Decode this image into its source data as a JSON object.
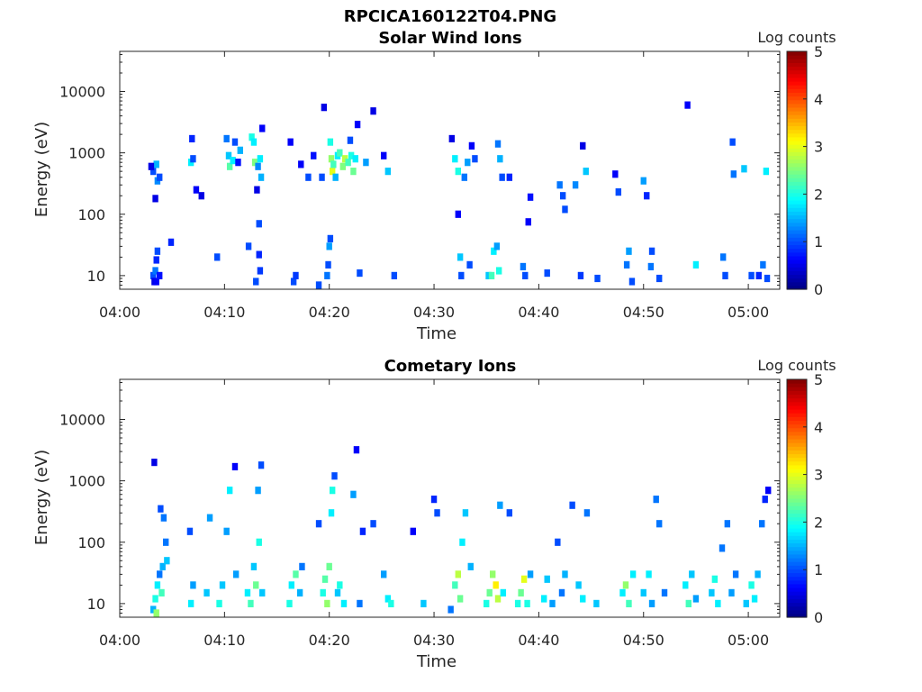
{
  "figure": {
    "title": "RPCICA160122T04.PNG",
    "colors": {
      "axes": "#262626",
      "background": "#ffffff",
      "colormap": [
        "#00007f",
        "#0000ff",
        "#007fff",
        "#00ffff",
        "#7fff7f",
        "#ffff00",
        "#ff7f00",
        "#ff0000",
        "#7f0000"
      ]
    }
  },
  "chart_data": [
    {
      "type": "heatmap",
      "title": "Solar Wind Ions",
      "xlabel": "Time",
      "ylabel": "Energy (eV)",
      "x_ticks": [
        "04:00",
        "04:10",
        "04:20",
        "04:30",
        "04:40",
        "04:50",
        "05:00"
      ],
      "y_ticks": [
        "10",
        "100",
        "1000",
        "10000"
      ],
      "y_scale": "log",
      "ylim": [
        6,
        45000
      ],
      "xlim": [
        "04:00",
        "05:03"
      ],
      "colorbar": {
        "label": "Log counts",
        "range": [
          0,
          5
        ],
        "ticks": [
          "0",
          "1",
          "2",
          "3",
          "4",
          "5"
        ]
      },
      "cells": [
        [
          3.2,
          10,
          1
        ],
        [
          3.3,
          8,
          0.5
        ],
        [
          3.4,
          12,
          1.2
        ],
        [
          3.5,
          18,
          0.8
        ],
        [
          3.5,
          8,
          0.6
        ],
        [
          3.6,
          25,
          1
        ],
        [
          3.8,
          10,
          0.7
        ],
        [
          3.2,
          500,
          1
        ],
        [
          3.5,
          650,
          1.5
        ],
        [
          3.6,
          350,
          1.3
        ],
        [
          3.8,
          400,
          1
        ],
        [
          3.0,
          600,
          0.5
        ],
        [
          3.4,
          180,
          0.5
        ],
        [
          4.9,
          35,
          0.8
        ],
        [
          6.8,
          700,
          1.8
        ],
        [
          6.9,
          1700,
          0.8
        ],
        [
          7.0,
          800,
          1
        ],
        [
          7.3,
          250,
          0.6
        ],
        [
          7.8,
          200,
          0.5
        ],
        [
          9.3,
          20,
          1
        ],
        [
          10.2,
          1700,
          1.2
        ],
        [
          10.4,
          900,
          1.6
        ],
        [
          10.5,
          600,
          2.3
        ],
        [
          10.8,
          750,
          1.8
        ],
        [
          11.0,
          1500,
          1
        ],
        [
          11.3,
          700,
          0.7
        ],
        [
          11.5,
          1100,
          1.5
        ],
        [
          12.3,
          30,
          1
        ],
        [
          12.6,
          1800,
          2
        ],
        [
          12.8,
          1500,
          1.8
        ],
        [
          12.9,
          700,
          2.5
        ],
        [
          13.1,
          250,
          0.5
        ],
        [
          13.2,
          600,
          1.3
        ],
        [
          13.4,
          800,
          1.8
        ],
        [
          13.5,
          400,
          1.5
        ],
        [
          13.3,
          70,
          1
        ],
        [
          13.3,
          22,
          0.8
        ],
        [
          13.6,
          2500,
          0.6
        ],
        [
          13.0,
          8,
          1
        ],
        [
          13.4,
          12,
          0.9
        ],
        [
          16.6,
          8,
          1
        ],
        [
          16.8,
          10,
          0.9
        ],
        [
          16.3,
          1500,
          0.6
        ],
        [
          17.3,
          650,
          0.6
        ],
        [
          18.0,
          400,
          1
        ],
        [
          18.5,
          900,
          0.7
        ],
        [
          19.0,
          7,
          1
        ],
        [
          19.3,
          400,
          1
        ],
        [
          19.5,
          5500,
          0.5
        ],
        [
          19.8,
          10,
          1.2
        ],
        [
          19.9,
          15,
          1
        ],
        [
          20.0,
          30,
          1.4
        ],
        [
          20.1,
          40,
          1
        ],
        [
          20.1,
          1500,
          2
        ],
        [
          20.2,
          800,
          2.6
        ],
        [
          20.3,
          500,
          3
        ],
        [
          20.4,
          650,
          2.2
        ],
        [
          20.6,
          400,
          1.5
        ],
        [
          20.8,
          900,
          1.8
        ],
        [
          21.0,
          1000,
          2.2
        ],
        [
          21.3,
          600,
          2.5
        ],
        [
          21.5,
          800,
          2.8
        ],
        [
          21.8,
          700,
          2.2
        ],
        [
          22.0,
          1600,
          1
        ],
        [
          22.1,
          900,
          2
        ],
        [
          22.3,
          500,
          2.4
        ],
        [
          22.5,
          800,
          1.8
        ],
        [
          22.7,
          2900,
          0.6
        ],
        [
          22.9,
          11,
          1
        ],
        [
          23.5,
          700,
          1.4
        ],
        [
          24.2,
          4800,
          0.5
        ],
        [
          25.2,
          900,
          0.6
        ],
        [
          25.6,
          500,
          1.6
        ],
        [
          26.2,
          10,
          1
        ],
        [
          32.0,
          800,
          1.8
        ],
        [
          32.3,
          500,
          2
        ],
        [
          32.5,
          20,
          1.6
        ],
        [
          32.6,
          10,
          1
        ],
        [
          32.9,
          400,
          1.2
        ],
        [
          33.2,
          700,
          1.4
        ],
        [
          33.4,
          15,
          1
        ],
        [
          33.6,
          1300,
          0.6
        ],
        [
          33.9,
          800,
          1
        ],
        [
          31.7,
          1700,
          0.5
        ],
        [
          32.3,
          100,
          0.6
        ],
        [
          35.2,
          10,
          1.6
        ],
        [
          35.5,
          10,
          2.2
        ],
        [
          35.7,
          25,
          1.8
        ],
        [
          36.0,
          30,
          1.4
        ],
        [
          36.2,
          12,
          2
        ],
        [
          36.1,
          1400,
          1.2
        ],
        [
          36.3,
          800,
          1.5
        ],
        [
          36.5,
          400,
          1
        ],
        [
          37.2,
          400,
          0.8
        ],
        [
          38.5,
          14,
          1.2
        ],
        [
          38.7,
          10,
          1
        ],
        [
          39.2,
          190,
          0.7
        ],
        [
          39.0,
          75,
          0.6
        ],
        [
          40.8,
          11,
          1
        ],
        [
          42.0,
          300,
          1.2
        ],
        [
          42.3,
          200,
          1
        ],
        [
          42.5,
          120,
          1
        ],
        [
          43.5,
          300,
          1.3
        ],
        [
          44.0,
          10,
          0.9
        ],
        [
          44.2,
          1300,
          0.5
        ],
        [
          44.5,
          500,
          1.6
        ],
        [
          45.6,
          9,
          1
        ],
        [
          47.3,
          450,
          0.6
        ],
        [
          47.6,
          230,
          1
        ],
        [
          48.4,
          15,
          1.2
        ],
        [
          48.6,
          25,
          1.4
        ],
        [
          48.9,
          8,
          1
        ],
        [
          50.0,
          350,
          1.4
        ],
        [
          50.3,
          200,
          0.8
        ],
        [
          50.7,
          14,
          1.2
        ],
        [
          50.8,
          25,
          1
        ],
        [
          51.5,
          9,
          1
        ],
        [
          54.2,
          6000,
          0.6
        ],
        [
          55.0,
          15,
          1.8
        ],
        [
          57.6,
          20,
          1.2
        ],
        [
          57.8,
          10,
          1
        ],
        [
          58.5,
          1500,
          1
        ],
        [
          58.6,
          450,
          1.2
        ],
        [
          59.6,
          550,
          1.6
        ],
        [
          60.3,
          10,
          1
        ],
        [
          61.0,
          10,
          0.8
        ],
        [
          61.4,
          15,
          1.2
        ],
        [
          61.8,
          9,
          1
        ],
        [
          61.7,
          500,
          1.8
        ]
      ]
    },
    {
      "type": "heatmap",
      "title": "Cometary Ions",
      "xlabel": "Time",
      "ylabel": "Energy (eV)",
      "x_ticks": [
        "04:00",
        "04:10",
        "04:20",
        "04:30",
        "04:40",
        "04:50",
        "05:00"
      ],
      "y_ticks": [
        "10",
        "100",
        "1000",
        "10000"
      ],
      "y_scale": "log",
      "ylim": [
        6,
        45000
      ],
      "xlim": [
        "04:00",
        "05:03"
      ],
      "colorbar": {
        "label": "Log counts",
        "range": [
          0,
          5
        ],
        "ticks": [
          "0",
          "1",
          "2",
          "3",
          "4",
          "5"
        ]
      },
      "cells": [
        [
          3.2,
          8,
          1.5
        ],
        [
          3.4,
          12,
          2
        ],
        [
          3.5,
          7,
          2.6
        ],
        [
          3.6,
          20,
          1.8
        ],
        [
          3.8,
          30,
          1.2
        ],
        [
          4.0,
          15,
          2.2
        ],
        [
          4.1,
          40,
          1.5
        ],
        [
          3.3,
          2000,
          0.5
        ],
        [
          3.9,
          350,
          1
        ],
        [
          4.2,
          250,
          1.2
        ],
        [
          4.4,
          100,
          1.2
        ],
        [
          4.5,
          50,
          1.6
        ],
        [
          6.8,
          10,
          1.8
        ],
        [
          7.0,
          20,
          1.4
        ],
        [
          6.7,
          150,
          1
        ],
        [
          8.3,
          15,
          1.6
        ],
        [
          8.6,
          250,
          1.4
        ],
        [
          9.5,
          10,
          2
        ],
        [
          9.8,
          20,
          1.6
        ],
        [
          10.2,
          150,
          1.4
        ],
        [
          10.5,
          700,
          1.8
        ],
        [
          11.0,
          1700,
          0.6
        ],
        [
          11.1,
          30,
          1.4
        ],
        [
          12.2,
          15,
          1.8
        ],
        [
          12.5,
          10,
          2.2
        ],
        [
          12.8,
          40,
          1.6
        ],
        [
          13.0,
          20,
          2.4
        ],
        [
          13.3,
          100,
          2
        ],
        [
          13.5,
          1800,
          1
        ],
        [
          13.2,
          700,
          1.4
        ],
        [
          13.6,
          15,
          1.6
        ],
        [
          16.2,
          10,
          2
        ],
        [
          16.4,
          20,
          1.8
        ],
        [
          16.8,
          30,
          2.3
        ],
        [
          17.2,
          15,
          1.5
        ],
        [
          17.4,
          40,
          1.2
        ],
        [
          19.0,
          200,
          1
        ],
        [
          19.4,
          15,
          2
        ],
        [
          19.6,
          25,
          2.3
        ],
        [
          19.8,
          10,
          2.6
        ],
        [
          20.0,
          40,
          2.4
        ],
        [
          20.2,
          300,
          1.8
        ],
        [
          20.3,
          700,
          2
        ],
        [
          20.5,
          1200,
          1
        ],
        [
          20.8,
          15,
          1.6
        ],
        [
          21.0,
          20,
          2
        ],
        [
          21.4,
          10,
          1.8
        ],
        [
          22.3,
          600,
          1.4
        ],
        [
          22.6,
          3200,
          0.6
        ],
        [
          22.9,
          10,
          1.2
        ],
        [
          23.2,
          150,
          0.8
        ],
        [
          24.2,
          200,
          1
        ],
        [
          25.2,
          30,
          1.4
        ],
        [
          25.6,
          12,
          1.8
        ],
        [
          25.9,
          10,
          2
        ],
        [
          28.0,
          150,
          0.6
        ],
        [
          29.0,
          10,
          1.6
        ],
        [
          30.0,
          500,
          0.8
        ],
        [
          30.3,
          300,
          1
        ],
        [
          31.6,
          8,
          1.2
        ],
        [
          32.0,
          20,
          2.2
        ],
        [
          32.3,
          30,
          2.8
        ],
        [
          32.5,
          12,
          2.4
        ],
        [
          32.7,
          100,
          1.8
        ],
        [
          33.0,
          300,
          1.6
        ],
        [
          33.5,
          40,
          1.5
        ],
        [
          35.0,
          10,
          2
        ],
        [
          35.3,
          15,
          2.4
        ],
        [
          35.6,
          30,
          2.6
        ],
        [
          35.9,
          20,
          3.2
        ],
        [
          36.1,
          12,
          2.8
        ],
        [
          36.3,
          400,
          1.4
        ],
        [
          36.6,
          15,
          1.8
        ],
        [
          37.2,
          300,
          1
        ],
        [
          38.0,
          10,
          2
        ],
        [
          38.3,
          15,
          2.4
        ],
        [
          38.6,
          25,
          3
        ],
        [
          38.9,
          10,
          2
        ],
        [
          39.2,
          30,
          1.4
        ],
        [
          40.5,
          12,
          1.8
        ],
        [
          40.8,
          25,
          1.6
        ],
        [
          41.3,
          10,
          1.4
        ],
        [
          41.8,
          100,
          1
        ],
        [
          42.2,
          15,
          1.2
        ],
        [
          42.5,
          30,
          1.5
        ],
        [
          43.2,
          400,
          1
        ],
        [
          43.8,
          20,
          1.6
        ],
        [
          44.2,
          12,
          1.8
        ],
        [
          44.6,
          300,
          1.2
        ],
        [
          45.5,
          10,
          1.6
        ],
        [
          48.0,
          15,
          1.8
        ],
        [
          48.3,
          20,
          2.6
        ],
        [
          48.6,
          10,
          2.2
        ],
        [
          49.0,
          30,
          1.8
        ],
        [
          50.0,
          15,
          1.6
        ],
        [
          50.5,
          30,
          1.8
        ],
        [
          50.8,
          10,
          1.4
        ],
        [
          51.2,
          500,
          1.2
        ],
        [
          51.5,
          200,
          1.2
        ],
        [
          52.0,
          15,
          1.2
        ],
        [
          54.0,
          20,
          1.8
        ],
        [
          54.3,
          10,
          2.2
        ],
        [
          54.6,
          30,
          1.6
        ],
        [
          55.0,
          12,
          1.4
        ],
        [
          56.5,
          15,
          1.6
        ],
        [
          56.8,
          25,
          2
        ],
        [
          57.1,
          10,
          1.8
        ],
        [
          57.5,
          80,
          1.2
        ],
        [
          58.0,
          200,
          1.2
        ],
        [
          58.4,
          15,
          1.4
        ],
        [
          58.8,
          30,
          1.2
        ],
        [
          59.8,
          10,
          1.6
        ],
        [
          60.3,
          20,
          2
        ],
        [
          60.6,
          12,
          1.8
        ],
        [
          60.9,
          30,
          1.5
        ],
        [
          61.3,
          200,
          1.2
        ],
        [
          61.6,
          500,
          0.8
        ],
        [
          61.9,
          700,
          0.6
        ]
      ]
    }
  ]
}
